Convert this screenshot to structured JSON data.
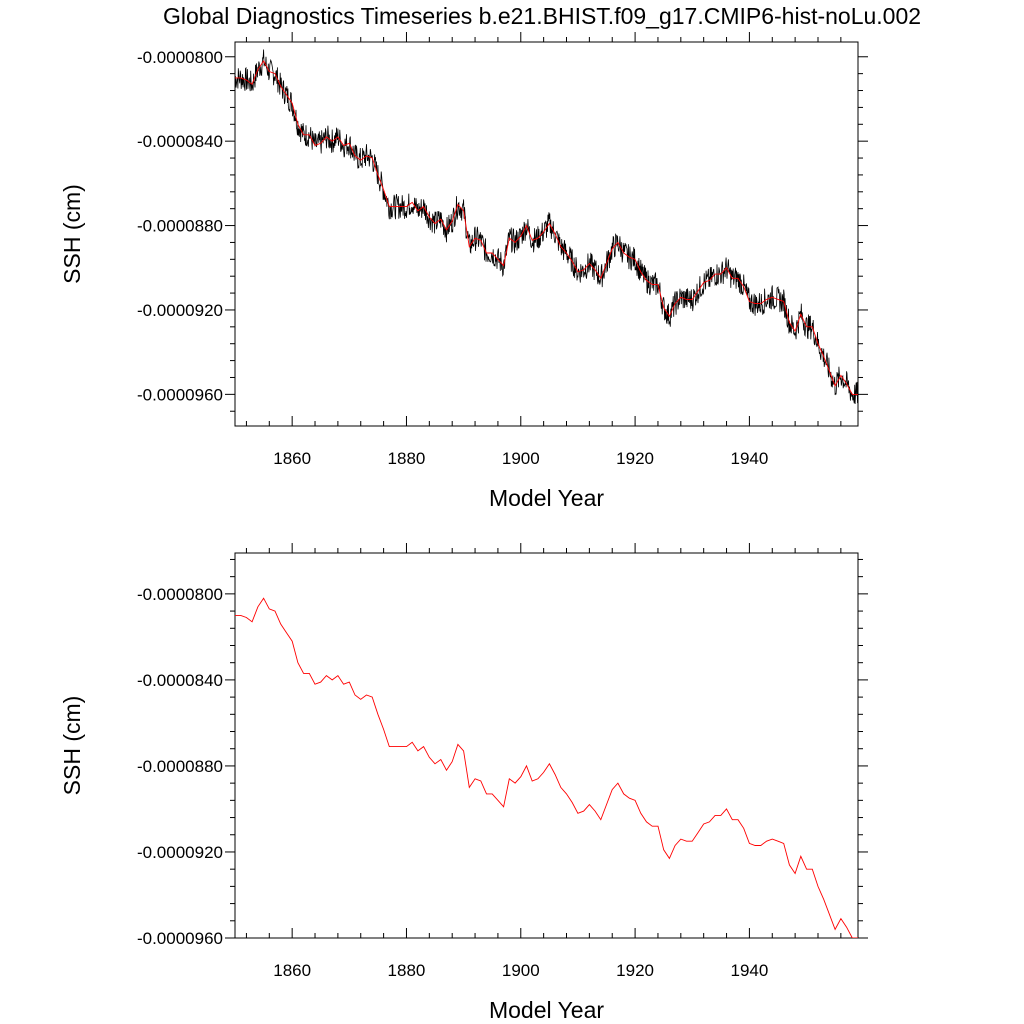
{
  "title": "Global Diagnostics Timeseries b.e21.BHIST.f09_g17.CMIP6-hist-noLu.002",
  "colors": {
    "raw_series": "#000000",
    "smooth_series": "#ff0000",
    "frame": "#000000"
  },
  "chart_data": [
    {
      "type": "line",
      "xlabel": "Model Year",
      "ylabel": "SSH (cm)",
      "xlim": [
        1850,
        1959
      ],
      "ylim": [
        -9.75e-05,
        -7.93e-05
      ],
      "xticks": [
        1860,
        1880,
        1900,
        1920,
        1940
      ],
      "xtick_labels": [
        "1860",
        "1880",
        "1900",
        "1920",
        "1940"
      ],
      "yticks": [
        -9.6e-05,
        -9.2e-05,
        -8.8e-05,
        -8.4e-05,
        -8e-05
      ],
      "ytick_labels": [
        "-0.0000960",
        "-0.0000920",
        "-0.0000880",
        "-0.0000840",
        "-0.0000800"
      ],
      "grid": false,
      "series": [
        {
          "style": "monthly",
          "color": "#000000",
          "note": "monthly series closely tracking annual mean"
        },
        {
          "style": "annual",
          "color": "#ff0000"
        }
      ]
    },
    {
      "type": "line",
      "xlabel": "Model Year",
      "ylabel": "SSH (cm)",
      "xlim": [
        1850,
        1959
      ],
      "ylim": [
        -9.6e-05,
        -7.81e-05
      ],
      "xticks": [
        1860,
        1880,
        1900,
        1920,
        1940
      ],
      "xtick_labels": [
        "1860",
        "1880",
        "1900",
        "1920",
        "1940"
      ],
      "yticks": [
        -9.6e-05,
        -9.2e-05,
        -8.8e-05,
        -8.4e-05,
        -8e-05
      ],
      "ytick_labels": [
        "-0.0000960",
        "-0.0000920",
        "-0.0000880",
        "-0.0000840",
        "-0.0000800"
      ],
      "grid": false,
      "series": [
        {
          "style": "annual",
          "color": "#ff0000"
        }
      ]
    }
  ],
  "annual_mean": {
    "x": [
      1850,
      1851,
      1852,
      1853,
      1854,
      1855,
      1856,
      1857,
      1858,
      1859,
      1860,
      1861,
      1862,
      1863,
      1864,
      1865,
      1866,
      1867,
      1868,
      1869,
      1870,
      1871,
      1872,
      1873,
      1874,
      1875,
      1876,
      1877,
      1878,
      1879,
      1880,
      1881,
      1882,
      1883,
      1884,
      1885,
      1886,
      1887,
      1888,
      1889,
      1890,
      1891,
      1892,
      1893,
      1894,
      1895,
      1896,
      1897,
      1898,
      1899,
      1900,
      1901,
      1902,
      1903,
      1904,
      1905,
      1906,
      1907,
      1908,
      1909,
      1910,
      1911,
      1912,
      1913,
      1914,
      1915,
      1916,
      1917,
      1918,
      1919,
      1920,
      1921,
      1922,
      1923,
      1924,
      1925,
      1926,
      1927,
      1928,
      1929,
      1930,
      1931,
      1932,
      1933,
      1934,
      1935,
      1936,
      1937,
      1938,
      1939,
      1940,
      1941,
      1942,
      1943,
      1944,
      1945,
      1946,
      1947,
      1948,
      1949,
      1950,
      1951,
      1952,
      1953,
      1954,
      1955,
      1956,
      1957,
      1958,
      1959
    ],
    "y": [
      -8.1e-05,
      -8.1e-05,
      -8.11e-05,
      -8.13e-05,
      -8.06e-05,
      -8.02e-05,
      -8.07e-05,
      -8.08e-05,
      -8.14e-05,
      -8.18e-05,
      -8.22e-05,
      -8.32e-05,
      -8.37e-05,
      -8.37e-05,
      -8.42e-05,
      -8.41e-05,
      -8.38e-05,
      -8.4e-05,
      -8.38e-05,
      -8.42e-05,
      -8.41e-05,
      -8.47e-05,
      -8.49e-05,
      -8.47e-05,
      -8.48e-05,
      -8.56e-05,
      -8.63e-05,
      -8.71e-05,
      -8.71e-05,
      -8.71e-05,
      -8.71e-05,
      -8.69e-05,
      -8.73e-05,
      -8.71e-05,
      -8.76e-05,
      -8.79e-05,
      -8.77e-05,
      -8.82e-05,
      -8.78e-05,
      -8.7e-05,
      -8.73e-05,
      -8.9e-05,
      -8.86e-05,
      -8.87e-05,
      -8.93e-05,
      -8.93e-05,
      -8.96e-05,
      -8.99e-05,
      -8.86e-05,
      -8.88e-05,
      -8.85e-05,
      -8.8e-05,
      -8.87e-05,
      -8.86e-05,
      -8.83e-05,
      -8.79e-05,
      -8.84e-05,
      -8.9e-05,
      -8.93e-05,
      -8.97e-05,
      -9.02e-05,
      -9.01e-05,
      -8.98e-05,
      -9.01e-05,
      -9.05e-05,
      -8.98e-05,
      -8.91e-05,
      -8.88e-05,
      -8.93e-05,
      -8.95e-05,
      -8.96e-05,
      -9.02e-05,
      -9.06e-05,
      -9.08e-05,
      -9.08e-05,
      -9.19e-05,
      -9.23e-05,
      -9.17e-05,
      -9.14e-05,
      -9.15e-05,
      -9.15e-05,
      -9.11e-05,
      -9.07e-05,
      -9.06e-05,
      -9.03e-05,
      -9.03e-05,
      -9e-05,
      -9.05e-05,
      -9.05e-05,
      -9.09e-05,
      -9.16e-05,
      -9.17e-05,
      -9.17e-05,
      -9.15e-05,
      -9.14e-05,
      -9.15e-05,
      -9.16e-05,
      -9.26e-05,
      -9.3e-05,
      -9.22e-05,
      -9.28e-05,
      -9.28e-05,
      -9.36e-05,
      -9.42e-05,
      -9.49e-05,
      -9.56e-05,
      -9.51e-05,
      -9.55e-05,
      -9.6e-05,
      -9.6e-05
    ]
  }
}
